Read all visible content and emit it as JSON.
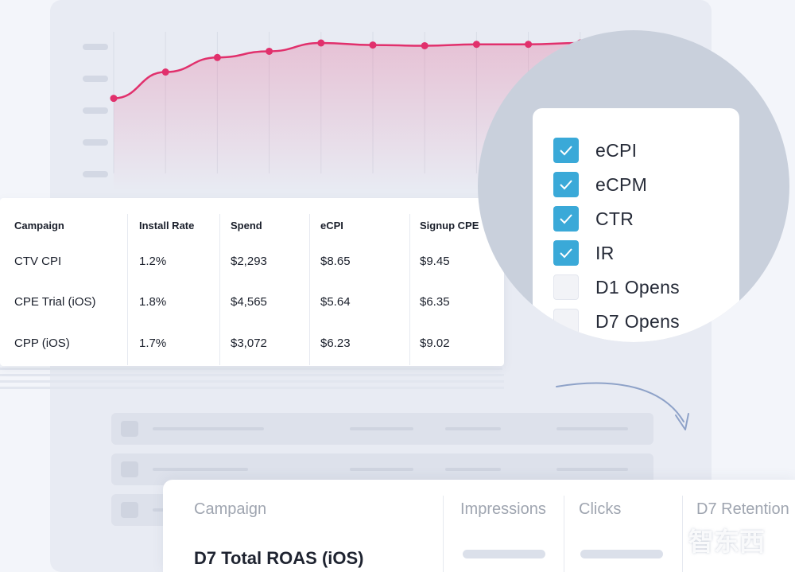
{
  "chart_data": {
    "type": "line",
    "x": [
      1,
      2,
      3,
      4,
      5,
      6,
      7,
      8,
      9,
      10
    ],
    "values": [
      20,
      58,
      79,
      88,
      100,
      97,
      96,
      98,
      98,
      100
    ],
    "ylim": [
      0,
      100
    ],
    "title": "",
    "xlabel": "",
    "ylabel": "",
    "grid": "vertical",
    "color": "#e1306c"
  },
  "table": {
    "columns": [
      "Campaign",
      "Install Rate",
      "Spend",
      "eCPI",
      "Signup CPE"
    ],
    "rows": [
      [
        "CTV CPI",
        "1.2%",
        "$2,293",
        "$8.65",
        "$9.45"
      ],
      [
        "CPE Trial (iOS)",
        "1.8%",
        "$4,565",
        "$5.64",
        "$6.35"
      ],
      [
        "CPP (iOS)",
        "1.7%",
        "$3,072",
        "$6.23",
        "$9.02"
      ]
    ]
  },
  "metric_picker": {
    "options": [
      {
        "label": "eCPI",
        "checked": true
      },
      {
        "label": "eCPM",
        "checked": true
      },
      {
        "label": "CTR",
        "checked": true
      },
      {
        "label": "IR",
        "checked": true
      },
      {
        "label": "D1 Opens",
        "checked": false
      },
      {
        "label": "D7 Opens",
        "checked": false
      }
    ],
    "accent": "#3aa9d8"
  },
  "bottom_table": {
    "columns": [
      "Campaign",
      "Impressions",
      "Clicks",
      "D7 Retention"
    ],
    "title_row": "D7 Total ROAS (iOS)"
  },
  "watermark": "智东西"
}
